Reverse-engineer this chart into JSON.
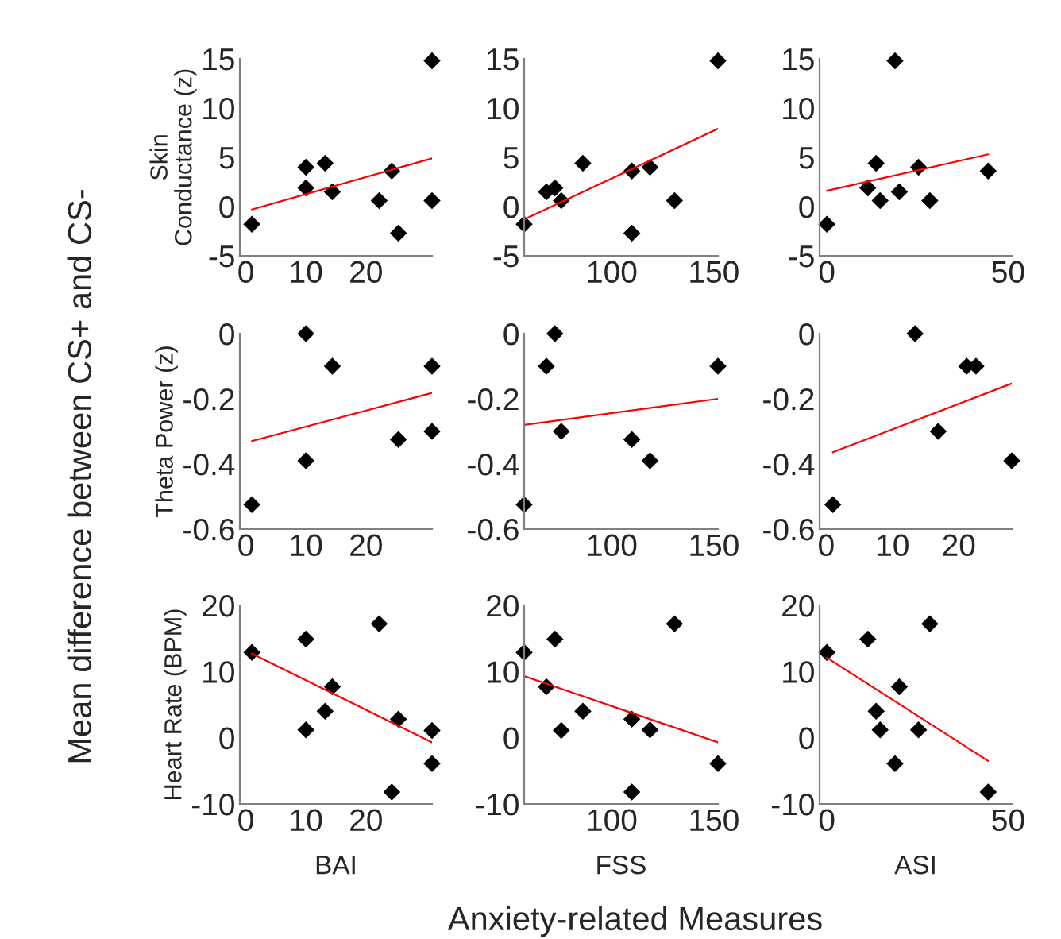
{
  "chart_data": [
    {
      "type": "scatter",
      "ylabel": "Skin\nConductance (z)",
      "xlim": [
        -1,
        31
      ],
      "ylim": [
        -5,
        15
      ],
      "xticks": [
        0,
        10,
        20
      ],
      "yticks": [
        -5,
        0,
        5,
        10,
        15
      ],
      "annotations": [
        "Mean difference between CS+ and CS-",
        "Anxiety-related Measures"
      ],
      "series": [
        {
          "type": "scatter",
          "marker": "diamond",
          "color": "#000000",
          "x": [
            1,
            10,
            10,
            13.2,
            14.4,
            22.2,
            24.3,
            25.4,
            31,
            31
          ],
          "values": [
            -1.8,
            4.0,
            1.9,
            4.4,
            1.5,
            0.6,
            3.6,
            -2.7,
            14.8,
            0.6
          ]
        },
        {
          "type": "line",
          "color": "#ff0000",
          "x": [
            1,
            31
          ],
          "values": [
            -0.3,
            4.9
          ]
        }
      ]
    },
    {
      "type": "scatter",
      "xlim": [
        57,
        152
      ],
      "ylim": [
        -5,
        15
      ],
      "xticks": [
        100,
        150
      ],
      "yticks": [
        -5,
        0,
        5,
        10,
        15
      ],
      "series": [
        {
          "type": "scatter",
          "marker": "diamond",
          "color": "#000000",
          "x": [
            57,
            67.9,
            72.1,
            75.2,
            85.8,
            109.8,
            109.8,
            118.7,
            130.7,
            152
          ],
          "values": [
            -1.8,
            1.5,
            1.9,
            0.6,
            4.4,
            3.6,
            -2.7,
            4.0,
            0.6,
            14.8
          ]
        },
        {
          "type": "line",
          "color": "#ff0000",
          "x": [
            57,
            152
          ],
          "values": [
            -1.3,
            7.9
          ]
        }
      ]
    },
    {
      "type": "scatter",
      "xlim": [
        -2,
        51
      ],
      "ylim": [
        -5,
        15
      ],
      "xticks": [
        0,
        50
      ],
      "yticks": [
        -5,
        0,
        5,
        10,
        15
      ],
      "series": [
        {
          "type": "scatter",
          "marker": "diamond",
          "color": "#000000",
          "x": [
            0,
            11.3,
            13.6,
            14.7,
            18.8,
            20,
            25.3,
            28.4,
            44.5
          ],
          "values": [
            -1.8,
            1.9,
            4.4,
            0.6,
            14.8,
            1.5,
            4.0,
            0.6,
            3.6
          ]
        },
        {
          "type": "line",
          "color": "#ff0000",
          "x": [
            0,
            44.5
          ],
          "values": [
            1.6,
            5.3
          ]
        }
      ]
    },
    {
      "type": "scatter",
      "ylabel": "Theta Power (z)",
      "xlim": [
        -1,
        31
      ],
      "ylim": [
        -0.6,
        0
      ],
      "xticks": [
        0,
        10,
        20
      ],
      "yticks": [
        -0.6,
        -0.4,
        -0.2,
        0
      ],
      "series": [
        {
          "type": "scatter",
          "marker": "diamond",
          "color": "#000000",
          "x": [
            1,
            10,
            10,
            14.4,
            25.4,
            31,
            31
          ],
          "values": [
            -0.525,
            0,
            -0.39,
            -0.1,
            -0.325,
            -0.1,
            -0.3
          ]
        },
        {
          "type": "line",
          "color": "#ff0000",
          "x": [
            1,
            31
          ],
          "values": [
            -0.33,
            -0.182
          ]
        }
      ]
    },
    {
      "type": "scatter",
      "xlim": [
        57,
        152
      ],
      "ylim": [
        -0.6,
        0
      ],
      "xticks": [
        100,
        150
      ],
      "yticks": [
        -0.6,
        -0.4,
        -0.2,
        0
      ],
      "series": [
        {
          "type": "scatter",
          "marker": "diamond",
          "color": "#000000",
          "x": [
            57,
            67.9,
            72.1,
            75.2,
            109.8,
            118.7,
            152
          ],
          "values": [
            -0.525,
            -0.1,
            0,
            -0.3,
            -0.325,
            -0.39,
            -0.1
          ]
        },
        {
          "type": "line",
          "color": "#ff0000",
          "x": [
            57,
            152
          ],
          "values": [
            -0.28,
            -0.2
          ]
        }
      ]
    },
    {
      "type": "scatter",
      "xlim": [
        -1,
        28
      ],
      "ylim": [
        -0.6,
        0
      ],
      "xticks": [
        0,
        10,
        20
      ],
      "yticks": [
        -0.6,
        -0.4,
        -0.2,
        0
      ],
      "series": [
        {
          "type": "scatter",
          "marker": "diamond",
          "color": "#000000",
          "x": [
            1,
            13.4,
            16.9,
            21.2,
            22.6,
            28
          ],
          "values": [
            -0.525,
            0,
            -0.3,
            -0.1,
            -0.1,
            -0.39
          ]
        },
        {
          "type": "line",
          "color": "#ff0000",
          "x": [
            1,
            28
          ],
          "values": [
            -0.364,
            -0.153
          ]
        }
      ]
    },
    {
      "type": "scatter",
      "ylabel": "Heart Rate (BPM)",
      "xlabel": "BAI",
      "xlim": [
        -1,
        31
      ],
      "ylim": [
        -10,
        20
      ],
      "xticks": [
        0,
        10,
        20
      ],
      "yticks": [
        -10,
        0,
        10,
        20
      ],
      "series": [
        {
          "type": "scatter",
          "marker": "diamond",
          "color": "#000000",
          "x": [
            1,
            10,
            10,
            13.2,
            14.4,
            22.2,
            24.3,
            25.4,
            31,
            31
          ],
          "values": [
            12.9,
            14.9,
            1.2,
            4.0,
            7.7,
            17.2,
            -8.2,
            2.8,
            1.1,
            -3.9
          ]
        },
        {
          "type": "line",
          "color": "#ff0000",
          "x": [
            1,
            31
          ],
          "values": [
            12.7,
            -0.7
          ]
        }
      ]
    },
    {
      "type": "scatter",
      "xlabel": "FSS",
      "xlim": [
        57,
        152
      ],
      "ylim": [
        -10,
        20
      ],
      "xticks": [
        100,
        150
      ],
      "yticks": [
        -10,
        0,
        10,
        20
      ],
      "series": [
        {
          "type": "scatter",
          "marker": "diamond",
          "color": "#000000",
          "x": [
            57,
            67.9,
            72.1,
            75.2,
            85.8,
            109.8,
            109.8,
            118.7,
            130.7,
            152
          ],
          "values": [
            12.9,
            7.7,
            14.9,
            1.1,
            4.0,
            2.8,
            -8.2,
            1.2,
            17.2,
            -3.9
          ]
        },
        {
          "type": "line",
          "color": "#ff0000",
          "x": [
            57,
            152
          ],
          "values": [
            9.3,
            -0.7
          ]
        }
      ]
    },
    {
      "type": "scatter",
      "xlabel": "ASI",
      "xlim": [
        -2,
        51
      ],
      "ylim": [
        -10,
        20
      ],
      "xticks": [
        0,
        50
      ],
      "yticks": [
        -10,
        0,
        10,
        20
      ],
      "series": [
        {
          "type": "scatter",
          "marker": "diamond",
          "color": "#000000",
          "x": [
            0,
            11.3,
            13.6,
            14.7,
            18.8,
            20,
            25.3,
            28.4,
            44.5
          ],
          "values": [
            12.9,
            14.9,
            4.0,
            1.2,
            -3.9,
            7.7,
            1.2,
            17.2,
            -8.2
          ]
        },
        {
          "type": "line",
          "color": "#ff0000",
          "x": [
            0,
            44.5
          ],
          "values": [
            12.1,
            -3.5
          ]
        }
      ]
    }
  ]
}
